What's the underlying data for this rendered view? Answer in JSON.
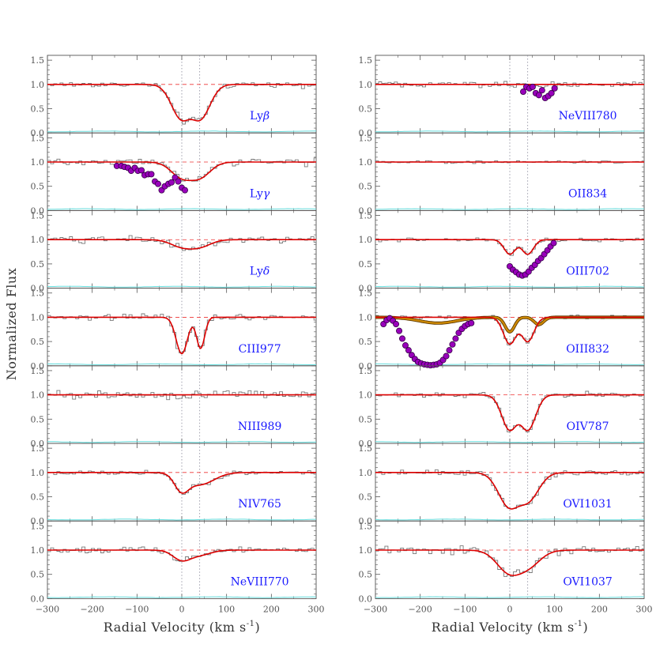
{
  "figure": {
    "ylabel": "Normalized Flux",
    "xlabel": "Radial Velocity (km s",
    "xlabel_sup": "-1",
    "xlabel_close": ")"
  },
  "colors": {
    "data": "#7a7a7a",
    "model": "#dd0000",
    "error": "#66dddd",
    "continuum": "#ee3333",
    "marker": "#9900bb",
    "blend_model": "#cc8800",
    "label": "#1a1aff",
    "frame": "#555555",
    "vline": "#888899"
  },
  "chart_data": {
    "type": "line",
    "x_range": [
      -300,
      300
    ],
    "y_range": [
      0,
      1.6
    ],
    "x_ticks": [
      -300,
      -200,
      -100,
      0,
      100,
      200,
      300
    ],
    "y_ticks": [
      0.0,
      0.5,
      1.0,
      1.5
    ],
    "component_velocities": [
      0,
      40
    ],
    "continuum_level": 1.0,
    "columns": [
      [
        {
          "label": "Lyβ",
          "label_base": "Ly",
          "label_greek": "β",
          "model": {
            "components": [
              {
                "v": 0,
                "depth": 0.7,
                "b": 32
              },
              {
                "v": 40,
                "depth": 0.7,
                "b": 32
              }
            ]
          },
          "noise": 0.07
        },
        {
          "label": "Lyγ",
          "label_base": "Ly",
          "label_greek": "γ",
          "model": {
            "components": [
              {
                "v": 0,
                "depth": 0.3,
                "b": 34
              },
              {
                "v": 40,
                "depth": 0.3,
                "b": 34
              }
            ]
          },
          "noise": 0.07,
          "excluded_points": [
            [
              -145,
              0.92
            ],
            [
              -135,
              0.92
            ],
            [
              -128,
              0.9
            ],
            [
              -120,
              0.88
            ],
            [
              -113,
              0.82
            ],
            [
              -105,
              0.88
            ],
            [
              -98,
              0.82
            ],
            [
              -90,
              0.83
            ],
            [
              -83,
              0.73
            ],
            [
              -75,
              0.75
            ],
            [
              -68,
              0.75
            ],
            [
              -60,
              0.6
            ],
            [
              -53,
              0.55
            ],
            [
              -45,
              0.42
            ],
            [
              -38,
              0.5
            ],
            [
              -30,
              0.55
            ],
            [
              -23,
              0.58
            ],
            [
              -15,
              0.68
            ],
            [
              -8,
              0.6
            ],
            [
              0,
              0.47
            ],
            [
              7,
              0.42
            ]
          ]
        },
        {
          "label": "Lyδ",
          "label_base": "Ly",
          "label_greek": "δ",
          "model": {
            "components": [
              {
                "v": 0,
                "depth": 0.14,
                "b": 35
              },
              {
                "v": 40,
                "depth": 0.14,
                "b": 35
              }
            ]
          },
          "noise": 0.07
        },
        {
          "label": "CIII977",
          "model": {
            "components": [
              {
                "v": 0,
                "depth": 0.75,
                "b": 18
              },
              {
                "v": 42,
                "depth": 0.64,
                "b": 13
              }
            ]
          },
          "noise": 0.06
        },
        {
          "label": "NIII989",
          "model": {
            "components": []
          },
          "noise": 0.08
        },
        {
          "label": "NIV765",
          "model": {
            "components": [
              {
                "v": 0,
                "depth": 0.35,
                "b": 22
              },
              {
                "v": 40,
                "depth": 0.25,
                "b": 45
              }
            ]
          },
          "noise": 0.05
        },
        {
          "label": "NeVIII770",
          "model": {
            "components": [
              {
                "v": 0,
                "depth": 0.2,
                "b": 28
              },
              {
                "v": 40,
                "depth": 0.1,
                "b": 35
              }
            ]
          },
          "noise": 0.06
        }
      ],
      [
        {
          "label": "NeVIII780",
          "model": {
            "components": []
          },
          "noise": 0.07,
          "excluded_points": [
            [
              30,
              0.85
            ],
            [
              37,
              0.95
            ],
            [
              44,
              0.92
            ],
            [
              51,
              0.95
            ],
            [
              58,
              0.82
            ],
            [
              65,
              0.78
            ],
            [
              72,
              0.88
            ],
            [
              79,
              0.72
            ],
            [
              86,
              0.76
            ],
            [
              93,
              0.82
            ],
            [
              100,
              0.92
            ]
          ]
        },
        {
          "label": "OII834",
          "model": {
            "components": []
          },
          "noise": 0.03
        },
        {
          "label": "OIII702",
          "model": {
            "components": [
              {
                "v": 0,
                "depth": 0.3,
                "b": 18
              },
              {
                "v": 40,
                "depth": 0.3,
                "b": 18
              }
            ]
          },
          "noise": 0.04,
          "excluded_points": [
            [
              0,
              0.45
            ],
            [
              7,
              0.38
            ],
            [
              14,
              0.33
            ],
            [
              21,
              0.28
            ],
            [
              28,
              0.26
            ],
            [
              35,
              0.28
            ],
            [
              42,
              0.34
            ],
            [
              49,
              0.42
            ],
            [
              56,
              0.48
            ],
            [
              63,
              0.56
            ],
            [
              70,
              0.62
            ],
            [
              77,
              0.7
            ],
            [
              84,
              0.78
            ],
            [
              91,
              0.86
            ],
            [
              98,
              0.93
            ]
          ]
        },
        {
          "label": "OIII832",
          "model": {
            "components": [
              {
                "v": 0,
                "depth": 0.55,
                "b": 20
              },
              {
                "v": 40,
                "depth": 0.5,
                "b": 20
              }
            ]
          },
          "noise": 0.04,
          "blend_model": {
            "components": [
              {
                "v": -160,
                "depth": 0.12,
                "b": 60
              },
              {
                "v": 0,
                "depth": 0.3,
                "b": 15
              },
              {
                "v": 65,
                "depth": 0.15,
                "b": 15
              }
            ]
          },
          "excluded_points": [
            [
              -282,
              0.86
            ],
            [
              -275,
              0.94
            ],
            [
              -268,
              0.98
            ],
            [
              -261,
              0.93
            ],
            [
              -254,
              0.86
            ],
            [
              -247,
              0.72
            ],
            [
              -240,
              0.56
            ],
            [
              -233,
              0.42
            ],
            [
              -226,
              0.32
            ],
            [
              -219,
              0.22
            ],
            [
              -212,
              0.14
            ],
            [
              -205,
              0.08
            ],
            [
              -198,
              0.05
            ],
            [
              -191,
              0.03
            ],
            [
              -184,
              0.02
            ],
            [
              -177,
              0.01
            ],
            [
              -170,
              0.02
            ],
            [
              -163,
              0.03
            ],
            [
              -156,
              0.06
            ],
            [
              -149,
              0.12
            ],
            [
              -142,
              0.2
            ],
            [
              -135,
              0.32
            ],
            [
              -128,
              0.44
            ],
            [
              -121,
              0.56
            ],
            [
              -114,
              0.68
            ],
            [
              -107,
              0.76
            ],
            [
              -100,
              0.82
            ],
            [
              -93,
              0.86
            ],
            [
              -86,
              0.88
            ]
          ]
        },
        {
          "label": "OIV787",
          "model": {
            "components": [
              {
                "v": 0,
                "depth": 0.72,
                "b": 25
              },
              {
                "v": 40,
                "depth": 0.72,
                "b": 25
              }
            ]
          },
          "noise": 0.05
        },
        {
          "label": "OVI1031",
          "model": {
            "components": [
              {
                "v": 0,
                "depth": 0.7,
                "b": 35
              },
              {
                "v": 40,
                "depth": 0.55,
                "b": 35
              }
            ]
          },
          "noise": 0.06
        },
        {
          "label": "OVI1037",
          "model": {
            "components": [
              {
                "v": 0,
                "depth": 0.45,
                "b": 40
              },
              {
                "v": 40,
                "depth": 0.3,
                "b": 40
              }
            ]
          },
          "noise": 0.09
        }
      ]
    ]
  }
}
